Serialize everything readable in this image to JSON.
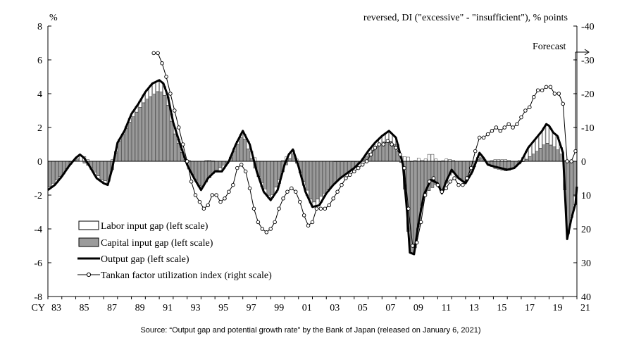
{
  "chart_data": {
    "type": "bar",
    "left_unit": "%",
    "right_unit": "reversed, DI (\"excessive\" - \"insufficient\"), % points",
    "forecast_label": "Forecast",
    "source": "Source: “Output gap and potential growth rate” by the Bank of Japan (released on January 6, 2021)",
    "x_prefix": "CY",
    "x_ticks": [
      "83",
      "85",
      "87",
      "89",
      "91",
      "93",
      "95",
      "97",
      "99",
      "01",
      "03",
      "05",
      "07",
      "09",
      "11",
      "13",
      "15",
      "17",
      "19",
      "21"
    ],
    "x_range": [
      1983,
      2021
    ],
    "ylim_left": [
      -8,
      8
    ],
    "ylim_right": [
      40,
      -40
    ],
    "left_ticks": [
      "8",
      "6",
      "4",
      "2",
      "0",
      "-2",
      "-4",
      "-6",
      "-8"
    ],
    "right_ticks": [
      "-40",
      "-30",
      "-20",
      "-10",
      "0",
      "10",
      "20",
      "30",
      "40"
    ],
    "legend": {
      "labor": "Labor input gap (left scale)",
      "capital": "Capital input gap (left scale)",
      "output": "Output gap (left scale)",
      "tankan": "Tankan factor utilization index (right scale)"
    },
    "output_gap": [
      [
        1983.0,
        -1.7
      ],
      [
        1983.5,
        -1.4
      ],
      [
        1984.0,
        -0.9
      ],
      [
        1984.5,
        -0.3
      ],
      [
        1985.0,
        0.2
      ],
      [
        1985.3,
        0.4
      ],
      [
        1985.6,
        0.2
      ],
      [
        1986.0,
        -0.3
      ],
      [
        1986.5,
        -1.0
      ],
      [
        1987.0,
        -1.3
      ],
      [
        1987.3,
        -1.4
      ],
      [
        1987.6,
        -0.5
      ],
      [
        1988.0,
        1.1
      ],
      [
        1988.5,
        1.8
      ],
      [
        1989.0,
        2.8
      ],
      [
        1989.5,
        3.4
      ],
      [
        1990.0,
        4.1
      ],
      [
        1990.5,
        4.6
      ],
      [
        1991.0,
        4.8
      ],
      [
        1991.3,
        4.6
      ],
      [
        1991.6,
        3.9
      ],
      [
        1992.0,
        2.3
      ],
      [
        1992.5,
        1.0
      ],
      [
        1993.0,
        -0.2
      ],
      [
        1993.5,
        -1.0
      ],
      [
        1994.0,
        -1.7
      ],
      [
        1994.5,
        -1.0
      ],
      [
        1995.0,
        -0.6
      ],
      [
        1995.5,
        -0.6
      ],
      [
        1996.0,
        0.0
      ],
      [
        1996.5,
        1.0
      ],
      [
        1997.0,
        1.8
      ],
      [
        1997.5,
        1.0
      ],
      [
        1998.0,
        -0.6
      ],
      [
        1998.5,
        -1.8
      ],
      [
        1999.0,
        -2.3
      ],
      [
        1999.5,
        -1.7
      ],
      [
        2000.0,
        -0.2
      ],
      [
        2000.3,
        0.4
      ],
      [
        2000.6,
        0.7
      ],
      [
        2001.0,
        -0.3
      ],
      [
        2001.5,
        -1.8
      ],
      [
        2002.0,
        -2.7
      ],
      [
        2002.5,
        -2.6
      ],
      [
        2003.0,
        -1.9
      ],
      [
        2003.5,
        -1.4
      ],
      [
        2004.0,
        -1.0
      ],
      [
        2004.5,
        -0.7
      ],
      [
        2005.0,
        -0.4
      ],
      [
        2005.5,
        0.0
      ],
      [
        2006.0,
        0.6
      ],
      [
        2006.5,
        1.1
      ],
      [
        2007.0,
        1.5
      ],
      [
        2007.5,
        1.8
      ],
      [
        2008.0,
        1.4
      ],
      [
        2008.5,
        -0.2
      ],
      [
        2008.8,
        -3.0
      ],
      [
        2009.0,
        -5.4
      ],
      [
        2009.3,
        -5.5
      ],
      [
        2009.6,
        -3.8
      ],
      [
        2010.0,
        -2.0
      ],
      [
        2010.5,
        -1.1
      ],
      [
        2011.0,
        -1.3
      ],
      [
        2011.3,
        -1.9
      ],
      [
        2011.6,
        -1.2
      ],
      [
        2012.0,
        -0.5
      ],
      [
        2012.5,
        -1.0
      ],
      [
        2013.0,
        -1.3
      ],
      [
        2013.5,
        -0.6
      ],
      [
        2014.0,
        0.5
      ],
      [
        2014.3,
        0.2
      ],
      [
        2014.6,
        -0.2
      ],
      [
        2015.0,
        -0.3
      ],
      [
        2015.5,
        -0.4
      ],
      [
        2016.0,
        -0.5
      ],
      [
        2016.5,
        -0.4
      ],
      [
        2017.0,
        0.0
      ],
      [
        2017.5,
        0.8
      ],
      [
        2018.0,
        1.3
      ],
      [
        2018.5,
        1.8
      ],
      [
        2018.8,
        2.2
      ],
      [
        2019.0,
        2.1
      ],
      [
        2019.3,
        1.7
      ],
      [
        2019.6,
        1.5
      ],
      [
        2020.0,
        0.5
      ],
      [
        2020.3,
        -4.6
      ],
      [
        2020.6,
        -3.4
      ],
      [
        2020.9,
        -2.5
      ],
      [
        2021.0,
        -1.5
      ]
    ],
    "capital_gap": [
      [
        1983.0,
        -1.6
      ],
      [
        1984.0,
        -0.8
      ],
      [
        1985.0,
        0.2
      ],
      [
        1986.0,
        -0.3
      ],
      [
        1987.0,
        -1.2
      ],
      [
        1987.5,
        -1.0
      ],
      [
        1988.0,
        1.0
      ],
      [
        1989.0,
        2.5
      ],
      [
        1990.0,
        3.6
      ],
      [
        1991.0,
        4.2
      ],
      [
        1991.5,
        3.8
      ],
      [
        1992.0,
        1.9
      ],
      [
        1993.0,
        -0.3
      ],
      [
        1994.0,
        -1.6
      ],
      [
        1995.0,
        -0.6
      ],
      [
        1996.0,
        0.0
      ],
      [
        1997.0,
        1.6
      ],
      [
        1998.0,
        -0.7
      ],
      [
        1999.0,
        -2.2
      ],
      [
        2000.0,
        -0.4
      ],
      [
        2000.6,
        0.5
      ],
      [
        2001.0,
        -0.4
      ],
      [
        2002.0,
        -2.5
      ],
      [
        2003.0,
        -1.8
      ],
      [
        2004.0,
        -1.0
      ],
      [
        2005.0,
        -0.4
      ],
      [
        2006.0,
        0.4
      ],
      [
        2007.0,
        1.1
      ],
      [
        2007.5,
        1.3
      ],
      [
        2008.0,
        0.9
      ],
      [
        2008.5,
        -0.4
      ],
      [
        2009.0,
        -5.4
      ],
      [
        2009.3,
        -5.5
      ],
      [
        2010.0,
        -2.0
      ],
      [
        2011.0,
        -1.3
      ],
      [
        2011.3,
        -1.9
      ],
      [
        2012.0,
        -0.6
      ],
      [
        2013.0,
        -1.3
      ],
      [
        2014.0,
        0.3
      ],
      [
        2015.0,
        -0.4
      ],
      [
        2016.0,
        -0.6
      ],
      [
        2017.0,
        -0.1
      ],
      [
        2018.0,
        0.5
      ],
      [
        2018.8,
        1.1
      ],
      [
        2019.5,
        0.8
      ],
      [
        2020.0,
        0.3
      ],
      [
        2020.3,
        -4.5
      ],
      [
        2020.6,
        -3.3
      ],
      [
        2021.0,
        -1.5
      ]
    ],
    "tankan_index": [
      [
        1990.6,
        -32
      ],
      [
        1990.9,
        -32
      ],
      [
        1991.2,
        -29
      ],
      [
        1991.5,
        -25
      ],
      [
        1991.8,
        -20
      ],
      [
        1992.1,
        -15
      ],
      [
        1992.4,
        -10
      ],
      [
        1992.7,
        -5
      ],
      [
        1993.0,
        0
      ],
      [
        1993.3,
        6
      ],
      [
        1993.6,
        10
      ],
      [
        1993.9,
        12
      ],
      [
        1994.2,
        14
      ],
      [
        1994.5,
        13
      ],
      [
        1994.8,
        10
      ],
      [
        1995.1,
        10
      ],
      [
        1995.4,
        12
      ],
      [
        1995.7,
        11
      ],
      [
        1996.0,
        9
      ],
      [
        1996.3,
        7
      ],
      [
        1996.6,
        2
      ],
      [
        1996.9,
        1
      ],
      [
        1997.2,
        3
      ],
      [
        1997.5,
        8
      ],
      [
        1997.8,
        14
      ],
      [
        1998.1,
        18
      ],
      [
        1998.4,
        20
      ],
      [
        1998.7,
        21
      ],
      [
        1999.0,
        20
      ],
      [
        1999.3,
        18
      ],
      [
        1999.6,
        14
      ],
      [
        1999.9,
        11
      ],
      [
        2000.2,
        9
      ],
      [
        2000.5,
        8
      ],
      [
        2000.8,
        9
      ],
      [
        2001.1,
        12
      ],
      [
        2001.4,
        16
      ],
      [
        2001.7,
        19
      ],
      [
        2002.0,
        18
      ],
      [
        2002.3,
        14
      ],
      [
        2002.6,
        14
      ],
      [
        2002.9,
        14
      ],
      [
        2003.2,
        13
      ],
      [
        2003.5,
        11
      ],
      [
        2003.8,
        9
      ],
      [
        2004.1,
        7
      ],
      [
        2004.4,
        5
      ],
      [
        2004.7,
        4
      ],
      [
        2005.0,
        3
      ],
      [
        2005.3,
        2
      ],
      [
        2005.6,
        1
      ],
      [
        2005.9,
        0
      ],
      [
        2006.2,
        -2
      ],
      [
        2006.5,
        -4
      ],
      [
        2006.8,
        -5
      ],
      [
        2007.1,
        -5
      ],
      [
        2007.4,
        -6
      ],
      [
        2007.7,
        -5
      ],
      [
        2008.0,
        -4
      ],
      [
        2008.3,
        -2
      ],
      [
        2008.6,
        2
      ],
      [
        2008.9,
        14
      ],
      [
        2009.2,
        25
      ],
      [
        2009.5,
        24
      ],
      [
        2009.8,
        18
      ],
      [
        2010.1,
        10
      ],
      [
        2010.4,
        6
      ],
      [
        2010.7,
        5
      ],
      [
        2011.0,
        7
      ],
      [
        2011.3,
        9
      ],
      [
        2011.6,
        8
      ],
      [
        2011.9,
        6
      ],
      [
        2012.2,
        5
      ],
      [
        2012.5,
        7
      ],
      [
        2012.8,
        7
      ],
      [
        2013.1,
        5
      ],
      [
        2013.4,
        2
      ],
      [
        2013.7,
        -3
      ],
      [
        2014.0,
        -7
      ],
      [
        2014.3,
        -7
      ],
      [
        2014.6,
        -8
      ],
      [
        2014.9,
        -9
      ],
      [
        2015.2,
        -10
      ],
      [
        2015.5,
        -9
      ],
      [
        2015.8,
        -10
      ],
      [
        2016.1,
        -11
      ],
      [
        2016.4,
        -10
      ],
      [
        2016.7,
        -11
      ],
      [
        2017.0,
        -13
      ],
      [
        2017.3,
        -15
      ],
      [
        2017.6,
        -16
      ],
      [
        2017.9,
        -19
      ],
      [
        2018.2,
        -21
      ],
      [
        2018.5,
        -21
      ],
      [
        2018.8,
        -22
      ],
      [
        2019.1,
        -22
      ],
      [
        2019.4,
        -20
      ],
      [
        2019.7,
        -20
      ],
      [
        2020.0,
        -17
      ],
      [
        2020.3,
        0
      ],
      [
        2020.6,
        0
      ],
      [
        2020.9,
        -3
      ]
    ]
  }
}
